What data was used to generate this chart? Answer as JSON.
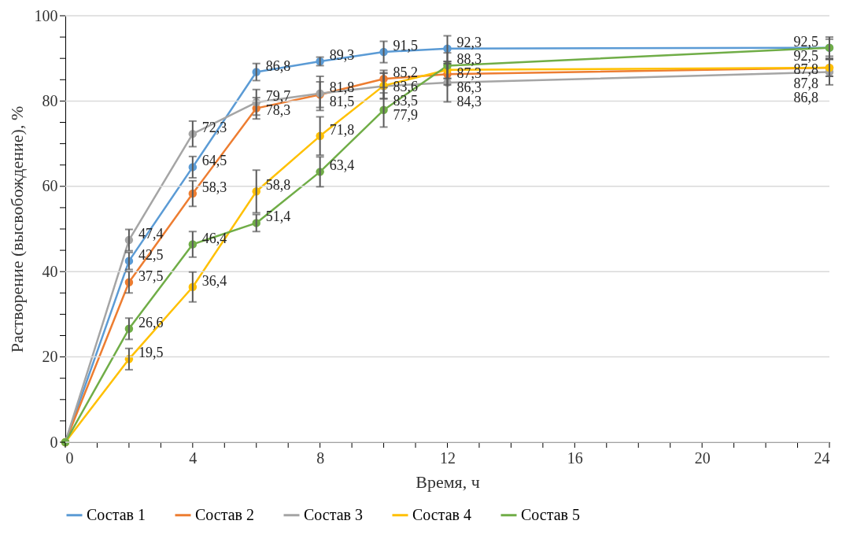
{
  "chart_data": {
    "type": "line",
    "xlabel": "Время, ч",
    "ylabel": "Растворение (высвобождение), %",
    "x": [
      0,
      2,
      4,
      6,
      8,
      10,
      12,
      24
    ],
    "xlim": [
      0,
      24
    ],
    "xticks": [
      0,
      {
        "value": 1,
        "label": null
      },
      {
        "value": 2,
        "label": null
      },
      {
        "value": 3,
        "label": null
      },
      4,
      {
        "value": 5,
        "label": null
      },
      {
        "value": 6,
        "label": null
      },
      {
        "value": 7,
        "label": null
      },
      8,
      {
        "value": 9,
        "label": null
      },
      {
        "value": 10,
        "label": null
      },
      {
        "value": 11,
        "label": null
      },
      12,
      {
        "value": 13,
        "label": null
      },
      {
        "value": 14,
        "label": null
      },
      {
        "value": 15,
        "label": null
      },
      16,
      {
        "value": 17,
        "label": null
      },
      {
        "value": 18,
        "label": null
      },
      {
        "value": 19,
        "label": null
      },
      20,
      {
        "value": 21,
        "label": null
      },
      {
        "value": 22,
        "label": null
      },
      {
        "value": 23,
        "label": null
      },
      24
    ],
    "ylim": [
      0,
      100
    ],
    "yticks": [
      0,
      {
        "value": 5,
        "label": null
      },
      {
        "value": 10,
        "label": null
      },
      {
        "value": 15,
        "label": null
      },
      20,
      {
        "value": 25,
        "label": null
      },
      {
        "value": 30,
        "label": null
      },
      {
        "value": 35,
        "label": null
      },
      40,
      {
        "value": 45,
        "label": null
      },
      {
        "value": 50,
        "label": null
      },
      {
        "value": 55,
        "label": null
      },
      60,
      {
        "value": 65,
        "label": null
      },
      {
        "value": 70,
        "label": null
      },
      {
        "value": 75,
        "label": null
      },
      80,
      {
        "value": 85,
        "label": null
      },
      {
        "value": 90,
        "label": null
      },
      {
        "value": 95,
        "label": null
      },
      100
    ],
    "grid": "y",
    "legend": "bottom",
    "marker": "circle",
    "line_style": "solid",
    "series": [
      {
        "name": "Состав 1",
        "color": "#5b9bd5",
        "values": [
          0,
          42.5,
          64.5,
          86.8,
          89.3,
          91.5,
          92.3,
          92.5
        ],
        "value_labels": [
          null,
          "42,5",
          "64,5",
          "86,8",
          "89,3",
          "91,5",
          "92,3",
          "92,5"
        ],
        "errors": [
          null,
          2,
          2.5,
          2,
          1,
          2.5,
          3,
          2
        ]
      },
      {
        "name": "Состав 2",
        "color": "#ed7d31",
        "values": [
          0,
          37.5,
          58.3,
          78.3,
          81.5,
          85.2,
          86.3,
          87.8
        ],
        "value_labels": [
          null,
          "37,5",
          "58,3",
          "78,3",
          "81,5",
          "85,2",
          "86,3",
          "87,8"
        ],
        "errors": [
          null,
          2.5,
          3,
          2.5,
          3,
          2,
          2.5,
          2
        ]
      },
      {
        "name": "Состав 3",
        "color": "#a5a5a5",
        "values": [
          0,
          47.4,
          72.3,
          79.7,
          81.8,
          83.5,
          84.3,
          86.8
        ],
        "value_labels": [
          null,
          "47,4",
          "72,3",
          "79,7",
          "81,8",
          "83,5",
          "84,3",
          "86,8"
        ],
        "errors": [
          null,
          2.5,
          3,
          3,
          4,
          3,
          4.5,
          3
        ]
      },
      {
        "name": "Состав 4",
        "color": "#ffc000",
        "values": [
          0,
          19.5,
          36.4,
          58.8,
          71.8,
          83.6,
          87.3,
          87.8
        ],
        "value_labels": [
          null,
          "19,5",
          "36,4",
          "58,8",
          "71,8",
          "83,6",
          "87,3",
          "87,8"
        ],
        "errors": [
          null,
          2.5,
          3.5,
          5,
          4.5,
          3,
          2,
          2
        ]
      },
      {
        "name": "Состав 5",
        "color": "#70ad47",
        "values": [
          0,
          26.6,
          46.4,
          51.4,
          63.4,
          77.9,
          88.3,
          92.5
        ],
        "value_labels": [
          null,
          "26,6",
          "46,4",
          "51,4",
          "63,4",
          "77,9",
          "88,3",
          "92,5"
        ],
        "errors": [
          null,
          2.5,
          3,
          2,
          3.5,
          4,
          3,
          2.5
        ]
      }
    ]
  }
}
